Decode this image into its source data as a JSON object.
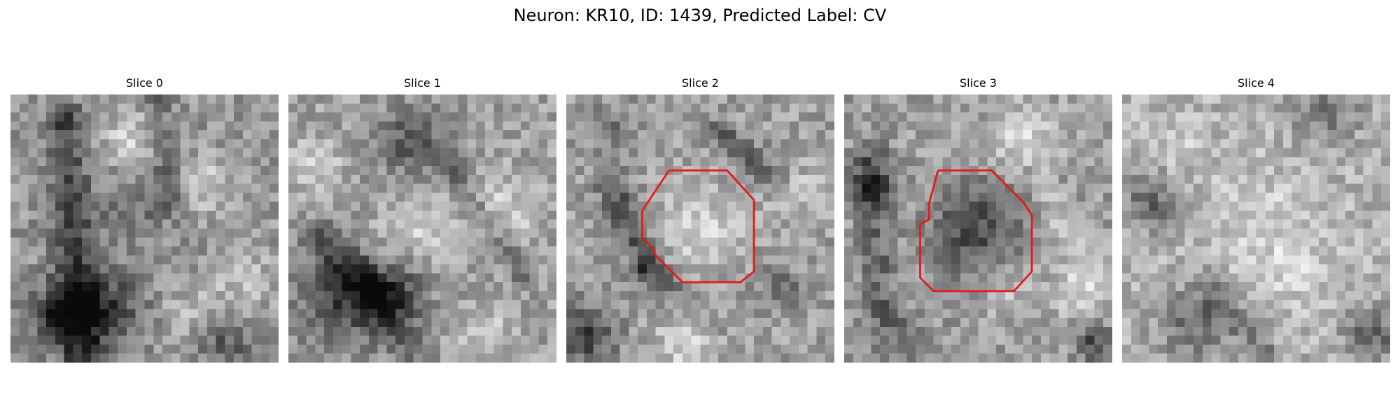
{
  "figure": {
    "title": "Neuron: KR10, ID: 1439, Predicted Label: CV",
    "colormap": "gray",
    "contour_color": "#e31a1c"
  },
  "panels": [
    {
      "title": "Slice 0",
      "has_contour": false
    },
    {
      "title": "Slice 1",
      "has_contour": false
    },
    {
      "title": "Slice 2",
      "has_contour": true
    },
    {
      "title": "Slice 3",
      "has_contour": true
    },
    {
      "title": "Slice 4",
      "has_contour": false
    }
  ]
}
